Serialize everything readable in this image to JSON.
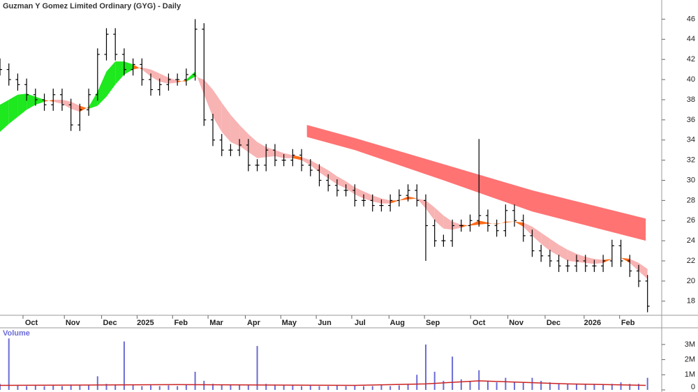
{
  "chart_data": {
    "type": "ohlc",
    "title": "Guzman Y Gomez Limited Ordinary (GYG) - Daily",
    "xlim": [
      0,
      373
    ],
    "xticks": [
      {
        "value": 17.7,
        "label": "Oct"
      },
      {
        "value": 41,
        "label": "Nov"
      },
      {
        "value": 62,
        "label": "Dec"
      },
      {
        "value": 82,
        "label": "2025"
      },
      {
        "value": 102,
        "label": "Feb"
      },
      {
        "value": 122,
        "label": "Mar"
      },
      {
        "value": 143,
        "label": "Apr"
      },
      {
        "value": 163,
        "label": "May"
      },
      {
        "value": 183,
        "label": "Jun"
      },
      {
        "value": 203,
        "label": "Jul"
      },
      {
        "value": 224,
        "label": "Aug"
      },
      {
        "value": 244,
        "label": "Sep"
      },
      {
        "value": 270,
        "label": "Oct"
      },
      {
        "value": 291,
        "label": "Nov"
      },
      {
        "value": 312,
        "label": "Dec"
      },
      {
        "value": 334,
        "label": "2026"
      },
      {
        "value": 354,
        "label": "Feb"
      }
    ],
    "ylim": [
      16.6,
      47.9
    ],
    "yticks": [
      18,
      20,
      22,
      24,
      26,
      28,
      30,
      32,
      34,
      36,
      38,
      40,
      42,
      44,
      46
    ],
    "color": "#000000",
    "x": [
      0,
      5,
      10,
      15,
      20,
      25,
      30,
      35,
      40,
      45,
      50,
      55,
      60,
      65,
      70,
      75,
      80,
      85,
      90,
      95,
      100,
      105,
      110,
      115,
      120,
      125,
      130,
      135,
      140,
      145,
      150,
      155,
      160,
      165,
      170,
      175,
      180,
      185,
      190,
      195,
      200,
      205,
      210,
      215,
      220,
      225,
      230,
      235,
      240,
      245,
      250,
      255,
      260,
      265,
      270,
      275,
      280,
      285,
      290,
      295,
      300,
      305,
      310,
      315,
      320,
      325,
      330,
      335,
      340,
      345,
      350,
      355,
      360,
      365
    ],
    "open": [
      41.5,
      41,
      40,
      39.5,
      38.5,
      38,
      37.5,
      38.5,
      37.5,
      35.5,
      37,
      38.5,
      42.5,
      44.5,
      42.5,
      41,
      41.5,
      40,
      39,
      39.5,
      40,
      40,
      40.5,
      45,
      36,
      34,
      33,
      33,
      33.5,
      31.5,
      31.5,
      33,
      32,
      32,
      32.5,
      31.5,
      31,
      30,
      29.5,
      29,
      29,
      28,
      28,
      27.5,
      27.5,
      28,
      28.5,
      29,
      28,
      25.5,
      24,
      24,
      25.5,
      25.5,
      26,
      26.5,
      25.5,
      25,
      27,
      26,
      24.5,
      23,
      22.5,
      22,
      21.5,
      21.5,
      22,
      21.5,
      21.5,
      22,
      23.5,
      22,
      21,
      20
    ],
    "high": [
      42.1,
      41.6,
      40.6,
      40.1,
      39.1,
      38.6,
      39.1,
      39.1,
      38.1,
      37.6,
      39.1,
      43.1,
      45.1,
      45.1,
      43.1,
      42.1,
      42.1,
      40.6,
      40.1,
      40.6,
      40.6,
      41.1,
      46,
      45.6,
      36.6,
      34.6,
      33.6,
      34.1,
      34.1,
      32.1,
      33.6,
      33.6,
      32.6,
      33.1,
      33.1,
      32.1,
      31.6,
      30.6,
      30.1,
      29.6,
      29.6,
      28.6,
      28.6,
      28.1,
      28.6,
      29.1,
      29.6,
      29.6,
      28.6,
      26.1,
      24.6,
      26.1,
      26.1,
      26.6,
      34.1,
      27.1,
      26.1,
      27.6,
      27.6,
      26.6,
      25.1,
      23.6,
      23.1,
      22.6,
      22.1,
      22.6,
      22.6,
      22.1,
      22.6,
      24.1,
      24.1,
      22.6,
      21.6,
      20.6
    ],
    "low": [
      40.4,
      39.4,
      38.9,
      37.9,
      37.4,
      36.9,
      36.9,
      36.9,
      34.9,
      34.9,
      36.4,
      37.9,
      41.9,
      41.9,
      40.4,
      40.4,
      39.4,
      38.4,
      38.4,
      38.9,
      39.4,
      39.4,
      39.9,
      35.4,
      33.4,
      32.4,
      32.4,
      32.4,
      30.9,
      30.9,
      30.9,
      31.4,
      31.4,
      31.4,
      30.9,
      30.4,
      29.4,
      28.9,
      28.4,
      28.4,
      27.4,
      27.4,
      26.9,
      26.9,
      26.9,
      27.4,
      27.9,
      27.4,
      22,
      23.4,
      23.4,
      23.4,
      24.9,
      24.9,
      25.4,
      24.9,
      24.4,
      24.4,
      25.4,
      23.9,
      22.4,
      21.9,
      21.4,
      20.9,
      20.9,
      20.9,
      20.9,
      20.9,
      20.9,
      21.4,
      21.4,
      20.4,
      19.4,
      16.9
    ],
    "close": [
      41,
      40,
      39.5,
      38.5,
      38,
      37.5,
      38.5,
      37.5,
      35.5,
      37,
      38.5,
      42.5,
      44.5,
      42.5,
      41,
      41.5,
      40,
      39,
      39.5,
      40,
      40,
      40.5,
      45,
      36,
      34,
      33,
      33,
      33.5,
      31.5,
      31.5,
      33,
      32,
      32,
      32.5,
      31.5,
      31,
      30,
      29.5,
      29,
      29,
      28,
      28,
      27.5,
      27.5,
      28,
      28.5,
      29,
      28,
      25.5,
      24,
      24,
      25.5,
      25.5,
      26,
      26.5,
      25.5,
      25,
      27,
      26,
      24.5,
      23,
      22.5,
      22,
      21.5,
      21.5,
      22,
      21.5,
      21.5,
      22,
      23.5,
      22,
      21,
      20,
      17.5
    ],
    "ma_short": [
      37.5,
      38,
      38.5,
      38.6,
      38.3,
      38,
      37.8,
      37.6,
      37.1,
      36.8,
      37.3,
      38.8,
      40.8,
      41.8,
      41.8,
      41.5,
      41,
      40.3,
      39.8,
      39.6,
      39.7,
      40,
      40.8,
      38.5,
      36.3,
      34.8,
      33.8,
      33.4,
      32.8,
      32.2,
      32.3,
      32.4,
      32.2,
      32.2,
      32,
      31.5,
      30.8,
      30.2,
      29.6,
      29.2,
      28.6,
      28.2,
      27.9,
      27.7,
      27.7,
      28,
      28.4,
      28.2,
      27.2,
      26,
      25.2,
      25.1,
      25.3,
      25.6,
      26,
      25.8,
      25.6,
      25.9,
      25.9,
      25.4,
      24.5,
      23.7,
      23,
      22.5,
      22,
      21.9,
      21.8,
      21.7,
      21.8,
      22.2,
      22.3,
      21.8,
      21,
      20.2
    ],
    "ma_long": [
      34.8,
      35.6,
      36.3,
      37,
      37.5,
      37.8,
      38,
      38,
      37.8,
      37.4,
      37.1,
      37.4,
      38.3,
      39.5,
      40.5,
      41,
      41.2,
      41,
      40.6,
      40.2,
      39.9,
      39.8,
      40.3,
      40,
      39,
      37.7,
      36.5,
      35.5,
      34.6,
      33.8,
      33.3,
      33,
      32.7,
      32.5,
      32.3,
      32,
      31.5,
      31,
      30.4,
      29.9,
      29.3,
      28.9,
      28.5,
      28.2,
      28,
      28,
      28.1,
      28.2,
      28,
      27.3,
      26.5,
      25.9,
      25.6,
      25.5,
      25.6,
      25.7,
      25.7,
      25.8,
      25.9,
      25.8,
      25.4,
      24.8,
      24.2,
      23.6,
      23.1,
      22.7,
      22.4,
      22.2,
      22.1,
      22.2,
      22.3,
      22.2,
      21.8,
      21.2
    ],
    "ribbon_colors": {
      "up": "#1ee81e",
      "flat": "#ff6a1a",
      "down": "#f8b3b3"
    },
    "band": {
      "color": "#ff7373",
      "x": [
        173,
        200,
        250,
        300,
        364
      ],
      "upper": [
        35.5,
        34.2,
        31.6,
        29,
        26.2
      ],
      "lower": [
        34.3,
        33,
        30,
        26.9,
        24
      ]
    },
    "volume": {
      "title": "Volume",
      "color": "#6b6bd6",
      "ylim": [
        0,
        4100000
      ],
      "yticks": [
        0,
        {
          "value": 1000000,
          "label": "1M"
        },
        {
          "value": 2000000,
          "label": "2M"
        },
        {
          "value": 3000000,
          "label": "3M"
        }
      ],
      "values": [
        400000,
        3400000,
        300000,
        250000,
        300000,
        250000,
        300000,
        250000,
        350000,
        300000,
        300000,
        900000,
        400000,
        350000,
        3200000,
        300000,
        250000,
        300000,
        250000,
        300000,
        250000,
        350000,
        1200000,
        600000,
        400000,
        350000,
        300000,
        350000,
        300000,
        2900000,
        400000,
        350000,
        300000,
        300000,
        250000,
        300000,
        250000,
        250000,
        300000,
        250000,
        300000,
        250000,
        250000,
        300000,
        250000,
        300000,
        350000,
        1000000,
        3000000,
        1200000,
        600000,
        2200000,
        700000,
        600000,
        1300000,
        600000,
        500000,
        800000,
        500000,
        500000,
        800000,
        600000,
        500000,
        400000,
        400000,
        400000,
        350000,
        400000,
        350000,
        400000,
        500000,
        400000,
        400000,
        800000
      ],
      "ma_color": "#cc2222",
      "ma_x": [
        0,
        100,
        200,
        240,
        270,
        320,
        364
      ],
      "ma_values": [
        300000,
        350000,
        300000,
        400000,
        600000,
        400000,
        300000
      ]
    }
  }
}
